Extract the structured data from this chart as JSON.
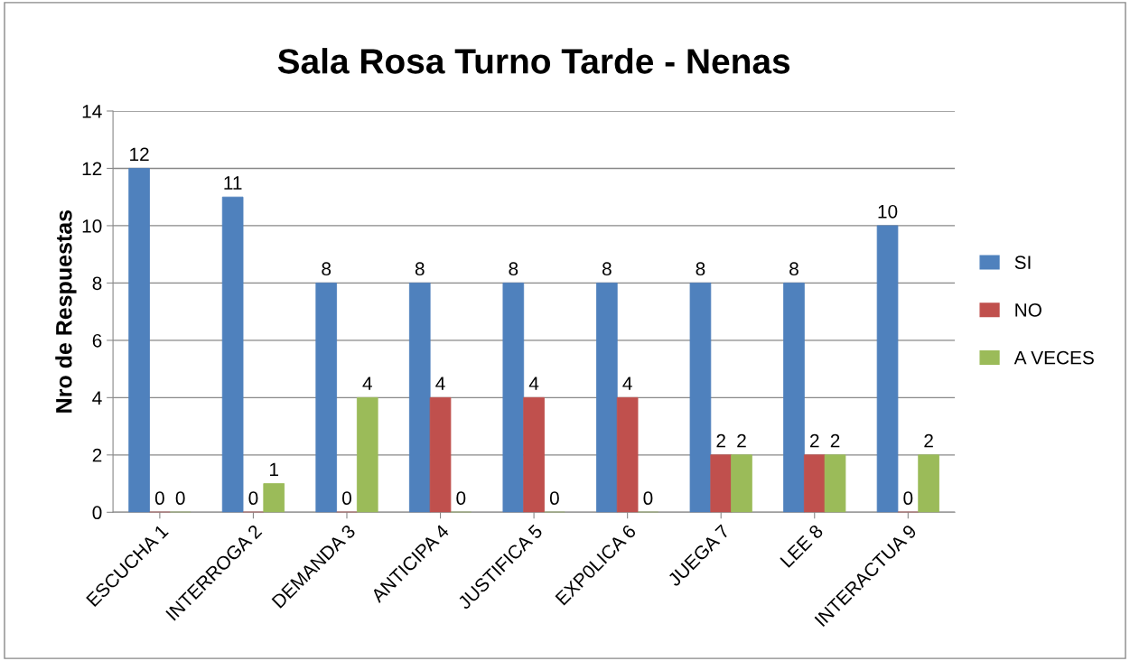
{
  "chart_data": {
    "type": "bar",
    "title": "Sala Rosa Turno Tarde - Nenas",
    "ylabel": "Nro de Respuestas",
    "categories": [
      "ESCUCHA 1",
      "INTERROGA 2",
      "DEMANDA 3",
      "ANTICIPA 4",
      "JUSTIFICA 5",
      "EXP0LICA 6",
      "JUEGA 7",
      "LEE 8",
      "INTERACTUA 9"
    ],
    "series": [
      {
        "name": "SI",
        "color": "#4f81bd",
        "values": [
          12,
          11,
          8,
          8,
          8,
          8,
          8,
          8,
          10
        ]
      },
      {
        "name": "NO",
        "color": "#c0504d",
        "values": [
          0,
          0,
          0,
          4,
          4,
          4,
          2,
          2,
          0
        ]
      },
      {
        "name": "A VECES",
        "color": "#9bbb59",
        "values": [
          0,
          1,
          4,
          0,
          0,
          0,
          2,
          2,
          2
        ]
      }
    ],
    "ylim": [
      0,
      14
    ],
    "yticks": [
      0,
      2,
      4,
      6,
      8,
      10,
      12,
      14
    ],
    "grid": "y",
    "legend": "right",
    "data_labels": true
  }
}
